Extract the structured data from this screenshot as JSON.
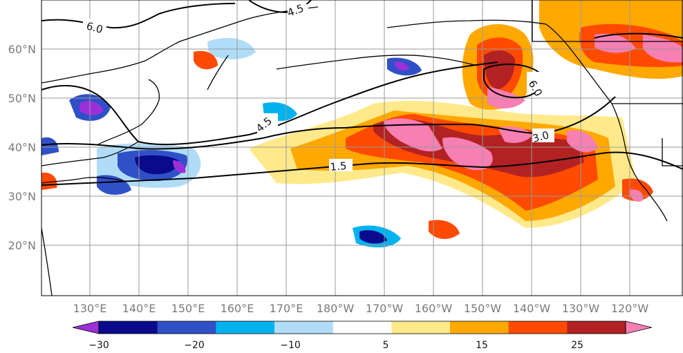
{
  "map": {
    "lon_ticks": [
      "130°E",
      "140°E",
      "150°E",
      "160°E",
      "170°E",
      "180°W",
      "170°W",
      "160°W",
      "150°W",
      "140°W",
      "130°W",
      "120°W"
    ],
    "lat_ticks": [
      "60°N",
      "50°N",
      "40°N",
      "30°N",
      "20°N"
    ],
    "contour_labels": [
      "6.0",
      "4.5",
      "6.0",
      "4.5",
      "3.0",
      "1.5"
    ]
  },
  "colorbar": {
    "tick_labels": [
      "−30",
      "−20",
      "−10",
      "5",
      "15",
      "25"
    ],
    "colors": [
      "#9b30d9",
      "#0a0a8c",
      "#3050c8",
      "#00b2ee",
      "#b0dcf8",
      "#ffffff",
      "#ffe98a",
      "#ffa800",
      "#ff4a00",
      "#b22222",
      "#f77fb3"
    ],
    "extend": "both"
  },
  "colors": {
    "coastline": "#000000",
    "contour": "#000000",
    "grid": "#9a9a9a",
    "tick_text": "#7a7a7a"
  }
}
